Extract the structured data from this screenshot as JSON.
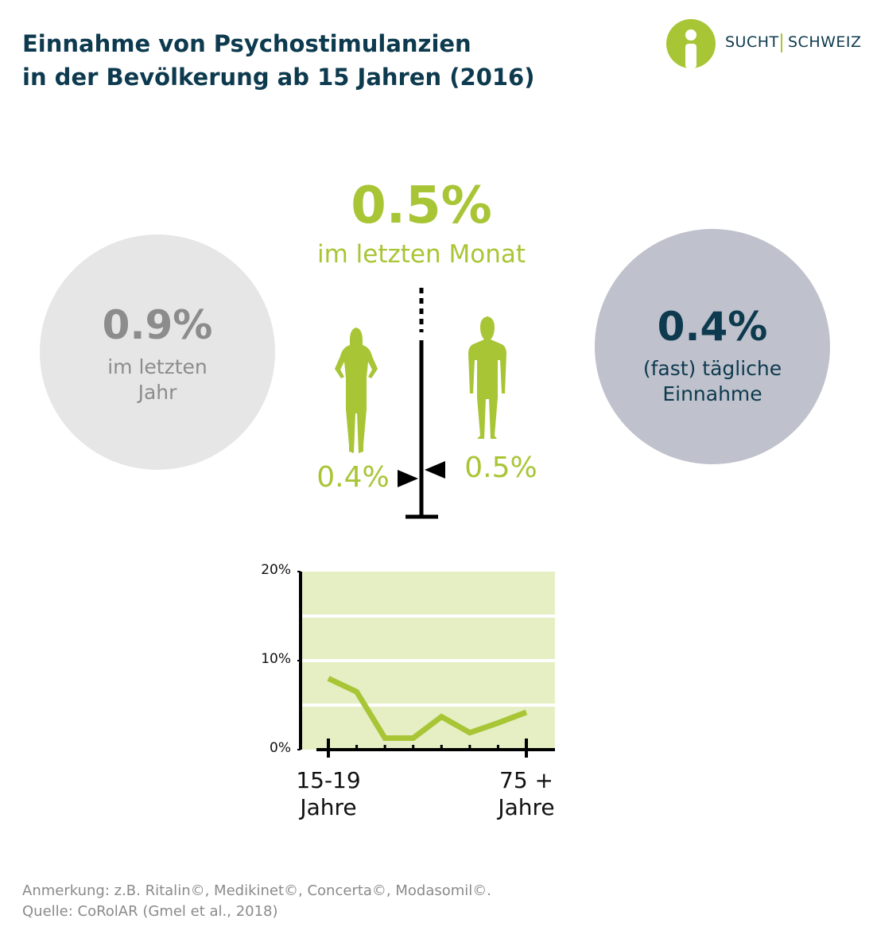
{
  "header": {
    "title": [
      "Einnahme von Psychostimulanzien",
      "in der Bevölkerung ab 15 Jahren (2016)"
    ],
    "logo": [
      "SUCHT",
      "SCHWEIZ"
    ]
  },
  "stats": {
    "month": {
      "value": "0.5%",
      "label": "im letzten Monat"
    },
    "year": {
      "value": "0.9%",
      "label": "im letzten\nJahr"
    },
    "daily": {
      "value": "0.4%",
      "label": "(fast) tägliche\nEinnahme"
    },
    "women": "0.4%",
    "men": "0.5%"
  },
  "chart_data": {
    "type": "line",
    "categories": [
      "15-19\nJahre",
      null,
      null,
      null,
      null,
      null,
      null,
      "75 +\nJahre"
    ],
    "series": [
      {
        "color": "#a8c536",
        "values": [
          8.0,
          6.5,
          1.3,
          1.3,
          3.7,
          1.9,
          3.0,
          4.2
        ]
      }
    ],
    "ylim": [
      0,
      20
    ],
    "yticks": [
      {
        "value": 0,
        "label": "0%"
      },
      {
        "value": 10,
        "label": "10%"
      },
      {
        "value": 20,
        "label": "20%"
      }
    ],
    "background": "#e5efc3",
    "grid": true
  },
  "footer": {
    "note": "Anmerkung: z.B. Ritalin©, Medikinet©, Concerta©, Modasomil©.",
    "source": "Quelle: CoRolAR (Gmel et al., 2018)"
  }
}
